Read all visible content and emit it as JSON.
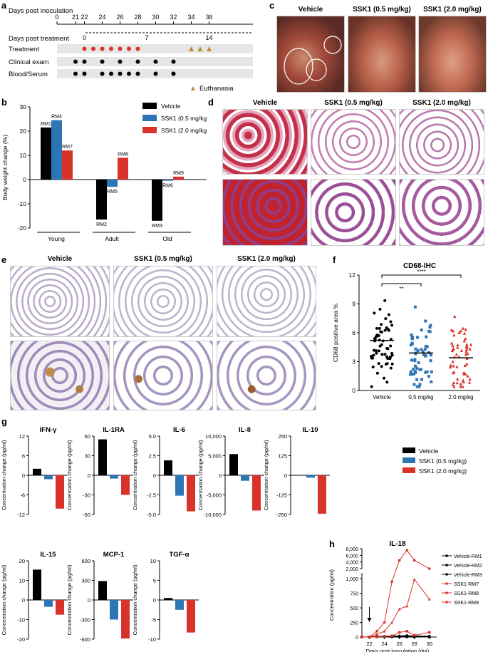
{
  "panel_labels": [
    "a",
    "b",
    "c",
    "d",
    "e",
    "f",
    "g",
    "h"
  ],
  "panel_a": {
    "axis_top_label": "Days post inoculation",
    "axis_top_ticks": [
      "0",
      "21",
      "22",
      "24",
      "26",
      "28",
      "30",
      "32",
      "34",
      "36"
    ],
    "axis_bottom_label": "Days post treatment",
    "axis_bottom_ticks": [
      "0",
      "7",
      "14"
    ],
    "rows": [
      "Treatment",
      "Clinical exam",
      "Blood/Serum"
    ],
    "legend": "Euthanasia"
  },
  "panel_c": {
    "titles": [
      "Vehicle",
      "SSK1 (0.5 mg/kg)",
      "SSK1 (2.0 mg/kg)"
    ]
  },
  "panel_d": {
    "titles": [
      "Vehicle",
      "SSK1 (0.5 mg/kg)",
      "SSK1 (2.0 mg/kg)"
    ]
  },
  "panel_e": {
    "titles": [
      "Vehicle",
      "SSK1 (0.5 mg/kg)",
      "SSK1 (2.0 mg/kg)"
    ]
  },
  "chart_data": [
    {
      "id": "b",
      "type": "bar",
      "ylabel": "Body weight change (%)",
      "ylim": [
        -20,
        30
      ],
      "yticks": [
        "30",
        "20",
        "10",
        "0",
        "-10",
        "-20"
      ],
      "categories": [
        "Young",
        "Adult",
        "Old"
      ],
      "series": [
        {
          "name": "Vehicle",
          "color": "#000000",
          "values": [
            21.5,
            -16.5,
            -17
          ],
          "labels": [
            "RM1",
            "RM2",
            "RM3"
          ]
        },
        {
          "name": "SSK1 (0.5 mg/kg)",
          "color": "#2e75b6",
          "values": [
            24.5,
            -3,
            -0.5
          ],
          "labels": [
            "RM4",
            "RM5",
            "RM6"
          ]
        },
        {
          "name": "SSK1 (2.0 mg/kg)",
          "color": "#d9322b",
          "values": [
            12,
            9,
            1.2
          ],
          "labels": [
            "RM7",
            "RM8",
            "RM9"
          ]
        }
      ]
    },
    {
      "id": "f",
      "type": "scatter",
      "title": "CD68-IHC",
      "ylabel": "CD68 positive area %",
      "ylim": [
        0,
        12
      ],
      "yticks": [
        "0",
        "3",
        "6",
        "9",
        "12"
      ],
      "categories": [
        "Vehicle",
        "0.5 mg/kg",
        "2.0 mg/kg"
      ],
      "means": [
        5.2,
        3.9,
        3.4
      ],
      "colors": [
        "#000000",
        "#2e75b6",
        "#d9322b"
      ],
      "significance": [
        "**",
        "****"
      ]
    },
    {
      "id": "g",
      "type": "bar",
      "ylabel": "Concentration change (pg/ml)",
      "series_names": [
        "Vehicle",
        "SSK1 (0.5 mg/kg)",
        "SSK1 (2.0 mg/kg)"
      ],
      "series_colors": [
        "#000000",
        "#2e75b6",
        "#d9322b"
      ],
      "subplots": [
        {
          "title": "IFN-γ",
          "yticks": [
            "12",
            "6",
            "0",
            "-6",
            "-12"
          ],
          "ylim": [
            -12,
            12
          ],
          "values": [
            2,
            -1.2,
            -10.2
          ]
        },
        {
          "title": "IL-1RA",
          "yticks": [
            "60",
            "30",
            "0",
            "-30",
            "-60"
          ],
          "ylim": [
            -60,
            60
          ],
          "values": [
            55,
            -5,
            -30
          ]
        },
        {
          "title": "IL-6",
          "yticks": [
            "5.0",
            "2.5",
            "0",
            "-2.5",
            "-5.0"
          ],
          "ylim": [
            -5,
            5
          ],
          "values": [
            1.9,
            -2.6,
            -4.6
          ]
        },
        {
          "title": "IL-8",
          "yticks": [
            "10,000",
            "5,000",
            "0",
            "-5,000",
            "-10,000"
          ],
          "ylim": [
            -10000,
            10000
          ],
          "values": [
            5400,
            -1400,
            -9000
          ]
        },
        {
          "title": "IL-10",
          "yticks": [
            "250",
            "125",
            "0",
            "-125",
            "-250"
          ],
          "ylim": [
            -250,
            250
          ],
          "values": [
            2,
            -15,
            -245
          ]
        },
        {
          "title": "IL-15",
          "yticks": [
            "20",
            "10",
            "0",
            "-10",
            "-20"
          ],
          "ylim": [
            -20,
            20
          ],
          "values": [
            15.5,
            -3.5,
            -7.5
          ]
        },
        {
          "title": "MCP-1",
          "yticks": [
            "600",
            "300",
            "0",
            "-300",
            "-600"
          ],
          "ylim": [
            -600,
            600
          ],
          "values": [
            290,
            -300,
            -590
          ]
        },
        {
          "title": "TGF-α",
          "yticks": [
            "10",
            "5",
            "0",
            "-5",
            "-10"
          ],
          "ylim": [
            -10,
            10
          ],
          "values": [
            0.5,
            -2.5,
            -8.3
          ]
        }
      ]
    },
    {
      "id": "h",
      "type": "line",
      "title": "IL-18",
      "xlabel": "Days post inoculation (dpi)",
      "ylabel": "Concentration (pg/ml)",
      "x_ticks": [
        "22",
        "24",
        "26",
        "28",
        "30"
      ],
      "y_ticks_lower": [
        "0",
        "250",
        "500",
        "750",
        "1,000"
      ],
      "y_ticks_upper": [
        "2,000",
        "4,000",
        "6,000",
        "8,000"
      ],
      "series": [
        {
          "name": "Vehicle-RM1",
          "color": "#000000",
          "marker": "circle",
          "x": [
            21,
            22,
            23,
            24,
            25,
            26,
            27,
            28,
            30
          ],
          "y": [
            0,
            0,
            10,
            15,
            20,
            20,
            25,
            20,
            15
          ]
        },
        {
          "name": "Vehicle-RM2",
          "color": "#000000",
          "marker": "triangle",
          "x": [
            21,
            22,
            23,
            24,
            25,
            26,
            27,
            28,
            30
          ],
          "y": [
            0,
            5,
            5,
            10,
            10,
            15,
            10,
            10,
            5
          ]
        },
        {
          "name": "Vehicle-RM3",
          "color": "#000000",
          "marker": "square",
          "x": [
            21,
            22,
            23,
            24,
            25,
            26,
            27,
            28,
            30
          ],
          "y": [
            0,
            0,
            5,
            5,
            5,
            5,
            5,
            5,
            5
          ]
        },
        {
          "name": "SSK1-RM7",
          "color": "#d9322b",
          "marker": "circle",
          "x": [
            21,
            22,
            23,
            24,
            25,
            26,
            27,
            28,
            30
          ],
          "y": [
            0,
            0,
            100,
            250,
            950,
            4500,
            7500,
            4500,
            2000
          ]
        },
        {
          "name": "SSK1-RM8",
          "color": "#d9322b",
          "marker": "triangle",
          "x": [
            21,
            22,
            23,
            24,
            25,
            26,
            27,
            28,
            30
          ],
          "y": [
            0,
            0,
            50,
            100,
            250,
            480,
            530,
            990,
            650
          ]
        },
        {
          "name": "SSK1-RM9",
          "color": "#d9322b",
          "marker": "square",
          "x": [
            21,
            22,
            23,
            24,
            25,
            26,
            27,
            28,
            30
          ],
          "y": [
            0,
            0,
            0,
            10,
            20,
            80,
            100,
            30,
            80
          ]
        }
      ]
    }
  ]
}
